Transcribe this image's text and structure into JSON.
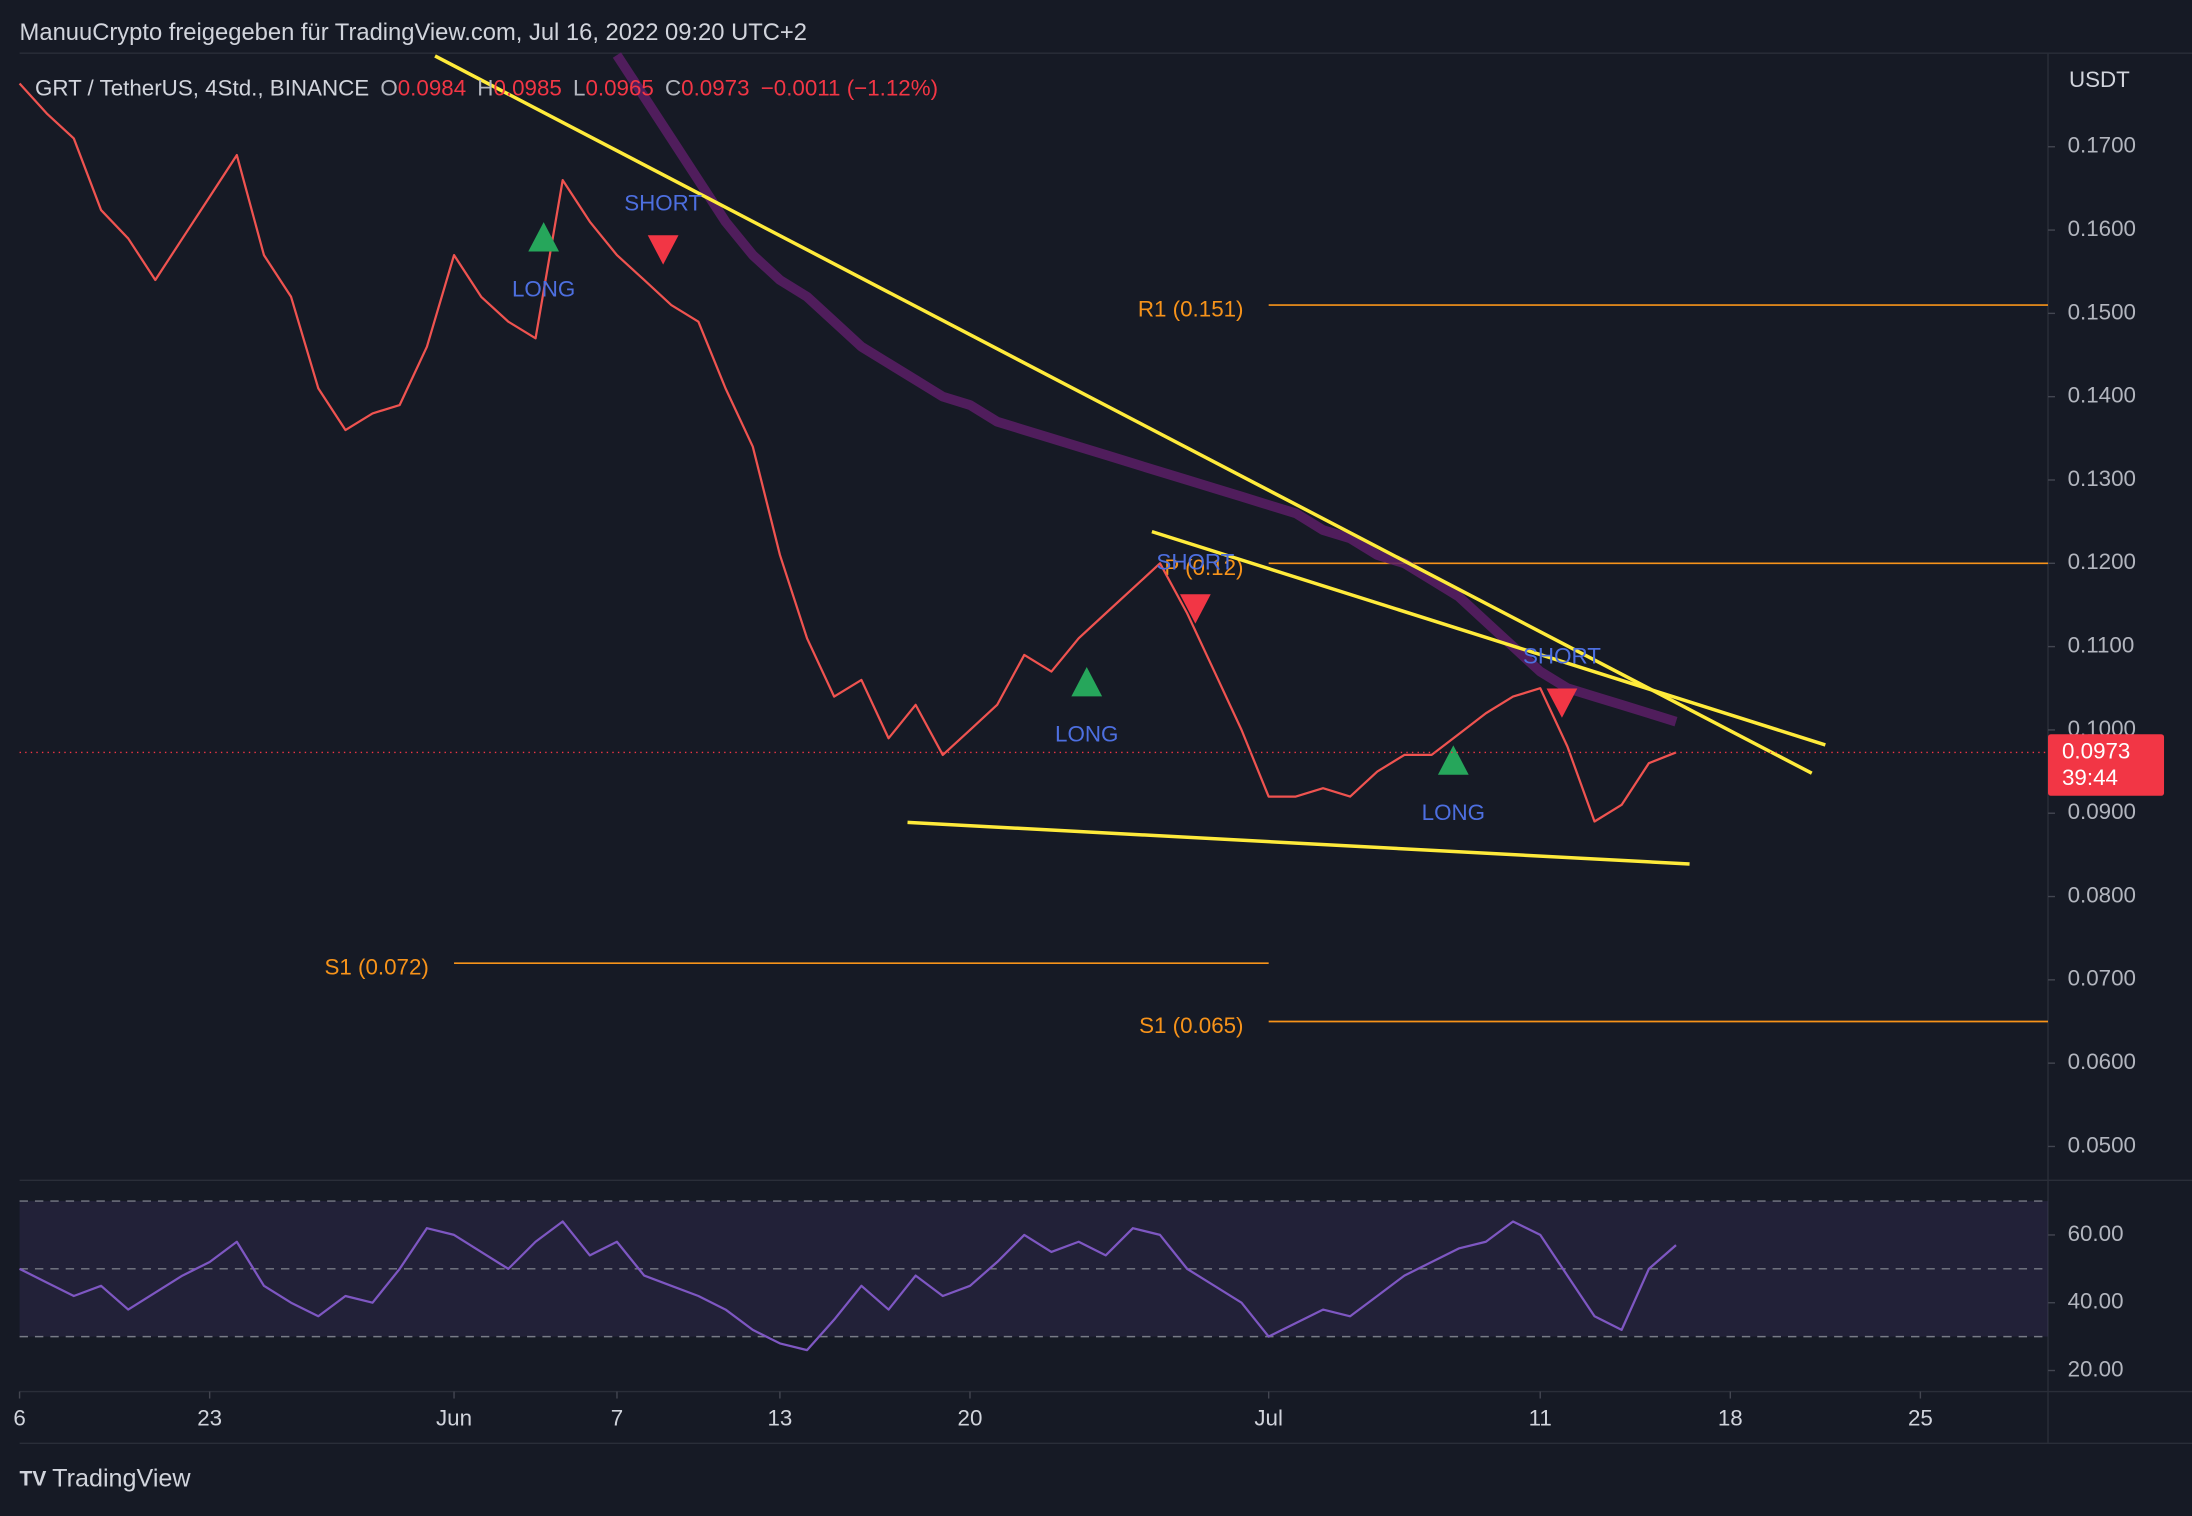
{
  "header": {
    "title": "ManuuCrypto freigegeben für TradingView.com, Jul 16, 2022 09:20 UTC+2",
    "symbol": "GRT / TetherUS, 4Std., BINANCE",
    "ohlc": [
      {
        "label": "O",
        "value": 0.0984
      },
      {
        "label": "H",
        "value": 0.0985
      },
      {
        "label": "L",
        "value": 0.0965
      },
      {
        "label": "C",
        "value": 0.0973
      }
    ],
    "change": "−0.0011 (−1.12%)"
  },
  "footer": {
    "brand": "TradingView"
  },
  "chart_data": [
    {
      "type": "line",
      "y_unit": "USDT",
      "x": [
        136,
        137,
        138,
        139,
        140,
        141,
        142,
        143,
        144,
        145,
        146,
        147,
        148,
        149,
        150,
        151,
        152,
        153,
        154,
        155,
        156,
        157,
        158,
        159,
        160,
        161,
        162,
        163,
        164,
        165,
        166,
        167,
        168,
        169,
        170,
        171,
        172,
        173,
        174,
        175,
        176,
        177,
        178,
        179,
        180,
        181,
        182,
        183,
        184,
        185,
        186,
        187,
        188,
        189,
        190,
        191,
        192,
        193,
        194,
        195,
        196,
        197
      ],
      "series": [
        {
          "color": "#ef5350",
          "values": [
            0.1776,
            0.174,
            0.171,
            0.1624,
            0.159,
            0.154,
            0.159,
            0.164,
            0.169,
            0.157,
            0.152,
            0.141,
            0.136,
            0.138,
            0.139,
            0.146,
            0.157,
            0.152,
            0.149,
            0.147,
            0.166,
            0.161,
            0.157,
            0.154,
            0.151,
            0.149,
            0.141,
            0.134,
            0.121,
            0.111,
            0.104,
            0.106,
            0.099,
            0.103,
            0.097,
            0.1,
            0.103,
            0.109,
            0.107,
            0.111,
            0.114,
            0.117,
            0.12,
            0.114,
            0.107,
            0.1,
            0.092,
            0.092,
            0.093,
            0.092,
            0.095,
            0.097,
            0.097,
            0.0995,
            0.102,
            0.104,
            0.105,
            0.098,
            0.089,
            0.091,
            0.096,
            0.0973
          ]
        },
        {
          "color": "#5b1f66",
          "values": [
            null,
            null,
            null,
            null,
            null,
            null,
            null,
            null,
            null,
            null,
            null,
            null,
            null,
            null,
            null,
            null,
            null,
            null,
            null,
            null,
            null,
            null,
            0.181,
            0.176,
            0.171,
            0.166,
            0.161,
            0.157,
            0.154,
            0.152,
            0.149,
            0.146,
            0.144,
            0.142,
            0.14,
            0.139,
            0.137,
            0.136,
            0.135,
            0.134,
            0.133,
            0.132,
            0.131,
            0.13,
            0.129,
            0.128,
            0.127,
            0.126,
            0.124,
            0.123,
            0.121,
            0.12,
            0.118,
            0.116,
            0.113,
            0.11,
            0.107,
            0.105,
            0.104,
            0.103,
            0.102,
            0.101
          ]
        }
      ],
      "xlim": [
        136,
        210.7
      ],
      "xticks": [
        {
          "value": 136,
          "label": "6"
        },
        {
          "value": 143,
          "label": "23"
        },
        {
          "value": 152,
          "label": "Jun"
        },
        {
          "value": 158,
          "label": "7"
        },
        {
          "value": 164,
          "label": "13"
        },
        {
          "value": 171,
          "label": "20"
        },
        {
          "value": 182,
          "label": "Jul"
        },
        {
          "value": 192,
          "label": "11"
        },
        {
          "value": 199,
          "label": "18"
        },
        {
          "value": 206,
          "label": "25"
        }
      ],
      "ylim": [
        0.0461,
        0.1809
      ],
      "yticks": [
        {
          "value": 0.17,
          "label": "0.1700"
        },
        {
          "value": 0.16,
          "label": "0.1600"
        },
        {
          "value": 0.15,
          "label": "0.1500"
        },
        {
          "value": 0.14,
          "label": "0.1400"
        },
        {
          "value": 0.13,
          "label": "0.1300"
        },
        {
          "value": 0.12,
          "label": "0.1200"
        },
        {
          "value": 0.11,
          "label": "0.1100"
        },
        {
          "value": 0.1,
          "label": "0.1000"
        },
        {
          "value": 0.09,
          "label": "0.0900"
        },
        {
          "value": 0.08,
          "label": "0.0800"
        },
        {
          "value": 0.07,
          "label": "0.0700"
        },
        {
          "value": 0.06,
          "label": "0.0600"
        },
        {
          "value": 0.05,
          "label": "0.0500"
        }
      ],
      "last_price": {
        "value": 0.0973,
        "label": "0.0973",
        "countdown": "39:44",
        "color": "#f23645"
      },
      "levels": [
        {
          "label": "R1 (0.151)",
          "value": 0.151,
          "from": 182
        },
        {
          "label": "P (0.12)",
          "value": 0.12,
          "from": 182
        },
        {
          "label": "S1 (0.072)",
          "value": 0.072,
          "from": 152,
          "to": 182
        },
        {
          "label": "S1 (0.065)",
          "value": 0.065,
          "from": 182
        }
      ],
      "level_color": "#f7931a",
      "trendlines": [
        {
          "x": [
            151.3,
            202.0
          ],
          "y": [
            0.1809,
            0.0948
          ]
        },
        {
          "x": [
            177.7,
            202.5
          ],
          "y": [
            0.1238,
            0.0982
          ]
        },
        {
          "x": [
            168.7,
            197.5
          ],
          "y": [
            0.0889,
            0.0839
          ]
        }
      ],
      "trendline_color": "#ffeb3b",
      "signals": [
        {
          "label": "LONG",
          "x": 155.3,
          "y": 0.1591
        },
        {
          "label": "SHORT",
          "x": 159.7,
          "y": 0.1577
        },
        {
          "label": "LONG",
          "x": 175.3,
          "y": 0.1057
        },
        {
          "label": "SHORT",
          "x": 179.3,
          "y": 0.1146
        },
        {
          "label": "LONG",
          "x": 188.8,
          "y": 0.0963
        },
        {
          "label": "SHORT",
          "x": 192.8,
          "y": 0.1033
        }
      ]
    },
    {
      "type": "line",
      "x": [
        136,
        137,
        138,
        139,
        140,
        141,
        142,
        143,
        144,
        145,
        146,
        147,
        148,
        149,
        150,
        151,
        152,
        153,
        154,
        155,
        156,
        157,
        158,
        159,
        160,
        161,
        162,
        163,
        164,
        165,
        166,
        167,
        168,
        169,
        170,
        171,
        172,
        173,
        174,
        175,
        176,
        177,
        178,
        179,
        180,
        181,
        182,
        183,
        184,
        185,
        186,
        187,
        188,
        189,
        190,
        191,
        192,
        193,
        194,
        195,
        196,
        197
      ],
      "series": [
        {
          "color": "#7e57c2",
          "values": [
            50,
            46,
            42,
            45,
            38,
            43,
            48,
            52,
            58,
            45,
            40,
            36,
            42,
            40,
            50,
            62,
            60,
            55,
            50,
            58,
            64,
            54,
            58,
            48,
            45,
            42,
            38,
            32,
            28,
            26,
            35,
            45,
            38,
            48,
            42,
            45,
            52,
            60,
            55,
            58,
            54,
            62,
            60,
            50,
            45,
            40,
            30,
            34,
            38,
            36,
            42,
            48,
            52,
            56,
            58,
            64,
            60,
            48,
            36,
            32,
            50,
            57
          ]
        }
      ],
      "xlim": [
        136,
        210.7
      ],
      "ylim": [
        13.8,
        75.7
      ],
      "yticks": [
        {
          "value": 60,
          "label": "60.00"
        },
        {
          "value": 40,
          "label": "40.00"
        },
        {
          "value": 20,
          "label": "20.00"
        }
      ],
      "levels": [
        70,
        50,
        30
      ]
    }
  ]
}
